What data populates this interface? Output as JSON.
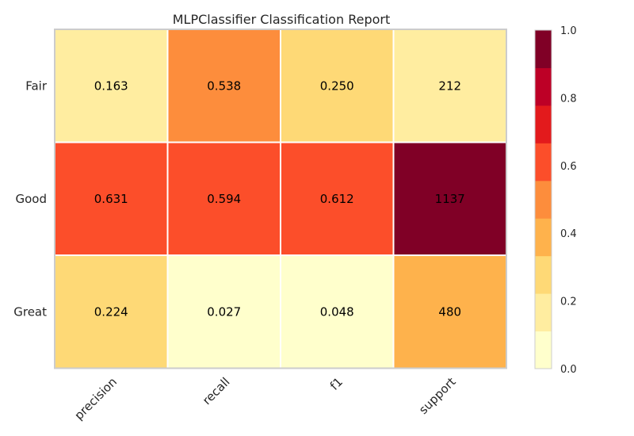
{
  "chart_data": {
    "type": "heatmap",
    "title": "MLPClassifier Classification Report",
    "rows": [
      "Fair",
      "Good",
      "Great"
    ],
    "columns": [
      "precision",
      "recall",
      "f1",
      "support"
    ],
    "values": [
      [
        0.163,
        0.538,
        0.25,
        212
      ],
      [
        0.631,
        0.594,
        0.612,
        1137
      ],
      [
        0.224,
        0.027,
        0.048,
        480
      ]
    ],
    "value_labels": [
      [
        "0.163",
        "0.538",
        "0.250",
        "212"
      ],
      [
        "0.631",
        "0.594",
        "0.612",
        "1137"
      ],
      [
        "0.224",
        "0.027",
        "0.048",
        "480"
      ]
    ],
    "color_fraction": [
      [
        0.163,
        0.538,
        0.25,
        0.186
      ],
      [
        0.631,
        0.594,
        0.612,
        1.0
      ],
      [
        0.224,
        0.027,
        0.048,
        0.422
      ]
    ],
    "colorbar": {
      "ticks": [
        "0.0",
        "0.2",
        "0.4",
        "0.6",
        "0.8",
        "1.0"
      ],
      "range": [
        0.0,
        1.0
      ],
      "colors": [
        "#ffffcc",
        "#ffeda0",
        "#fed976",
        "#feb24c",
        "#fd8d3c",
        "#fc4e2a",
        "#e31a1c",
        "#bd0026",
        "#800026"
      ]
    }
  }
}
